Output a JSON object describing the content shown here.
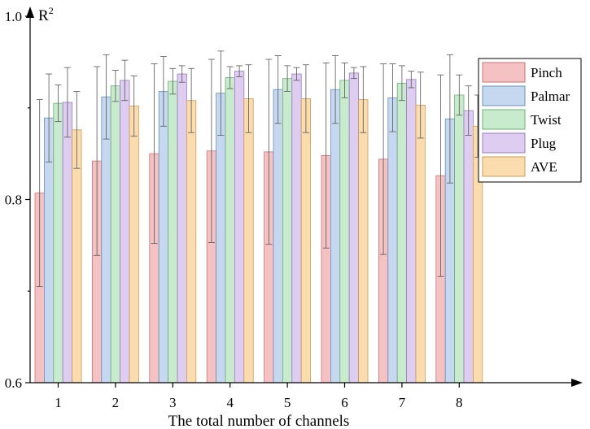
{
  "chart_data": {
    "type": "bar",
    "xlabel": "The total number of channels",
    "ylabel": "R",
    "ylabel_superscript": "2",
    "ylim": [
      0.6,
      1.0
    ],
    "yticks": [
      "0.6",
      "0.8",
      "1.0"
    ],
    "categories": [
      "1",
      "2",
      "3",
      "4",
      "5",
      "6",
      "7",
      "8"
    ],
    "legend_position": "right",
    "grid": false,
    "error_bars": true,
    "series": [
      {
        "name": "Pinch",
        "fill": "#f5c2c3",
        "edge": "#c97476",
        "values": [
          0.807,
          0.842,
          0.85,
          0.853,
          0.852,
          0.848,
          0.844,
          0.826
        ],
        "errors": [
          0.102,
          0.103,
          0.098,
          0.1,
          0.101,
          0.101,
          0.104,
          0.11
        ]
      },
      {
        "name": "Palmar",
        "fill": "#c6d8f0",
        "edge": "#6f8fb8",
        "values": [
          0.889,
          0.912,
          0.918,
          0.916,
          0.92,
          0.92,
          0.911,
          0.888
        ],
        "errors": [
          0.048,
          0.046,
          0.038,
          0.046,
          0.037,
          0.037,
          0.037,
          0.07
        ]
      },
      {
        "name": "Twist",
        "fill": "#c9ebcd",
        "edge": "#6fae78",
        "values": [
          0.905,
          0.924,
          0.929,
          0.933,
          0.932,
          0.93,
          0.927,
          0.914
        ],
        "errors": [
          0.02,
          0.017,
          0.014,
          0.012,
          0.014,
          0.019,
          0.019,
          0.022
        ]
      },
      {
        "name": "Plug",
        "fill": "#decdf0",
        "edge": "#9a7cc0",
        "values": [
          0.906,
          0.93,
          0.937,
          0.94,
          0.937,
          0.938,
          0.931,
          0.897
        ],
        "errors": [
          0.038,
          0.022,
          0.009,
          0.006,
          0.007,
          0.006,
          0.009,
          0.027
        ]
      },
      {
        "name": "AVE",
        "fill": "#fbdcaf",
        "edge": "#c99c5a",
        "values": [
          0.876,
          0.902,
          0.908,
          0.91,
          0.91,
          0.909,
          0.903,
          0.88
        ],
        "errors": [
          0.042,
          0.033,
          0.035,
          0.037,
          0.037,
          0.036,
          0.036,
          0.034
        ]
      }
    ]
  }
}
